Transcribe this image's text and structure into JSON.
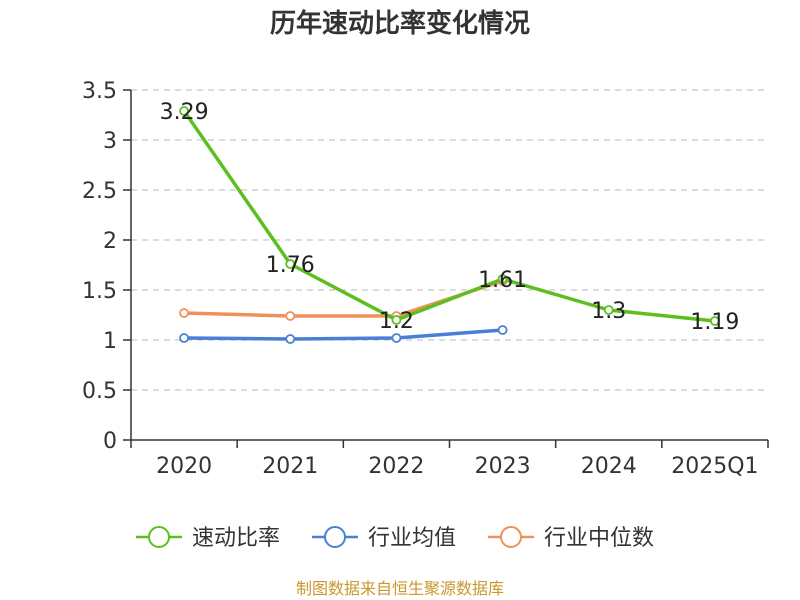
{
  "chart_data": {
    "type": "line",
    "title": "历年速动比率变化情况",
    "categories": [
      "2020",
      "2021",
      "2022",
      "2023",
      "2024",
      "2025Q1"
    ],
    "ylim": [
      0,
      3.5
    ],
    "yticks": [
      "0",
      "0.5",
      "1",
      "1.5",
      "2",
      "2.5",
      "3",
      "3.5"
    ],
    "series": [
      {
        "name": "速动比率",
        "color": "#5cbf1f",
        "values": [
          3.29,
          1.76,
          1.2,
          1.61,
          1.3,
          1.19
        ],
        "labels": [
          "3.29",
          "1.76",
          "1.2",
          "1.61",
          "1.3",
          "1.19"
        ]
      },
      {
        "name": "行业均值",
        "color": "#4a7fd6",
        "values": [
          1.02,
          1.01,
          1.02,
          1.1,
          null,
          null
        ]
      },
      {
        "name": "行业中位数",
        "color": "#f0905a",
        "values": [
          1.27,
          1.24,
          1.24,
          1.59,
          null,
          null
        ]
      }
    ],
    "xlabel": "",
    "ylabel": "",
    "grid": true,
    "legend_position": "bottom"
  },
  "source_note": "制图数据来自恒生聚源数据库"
}
